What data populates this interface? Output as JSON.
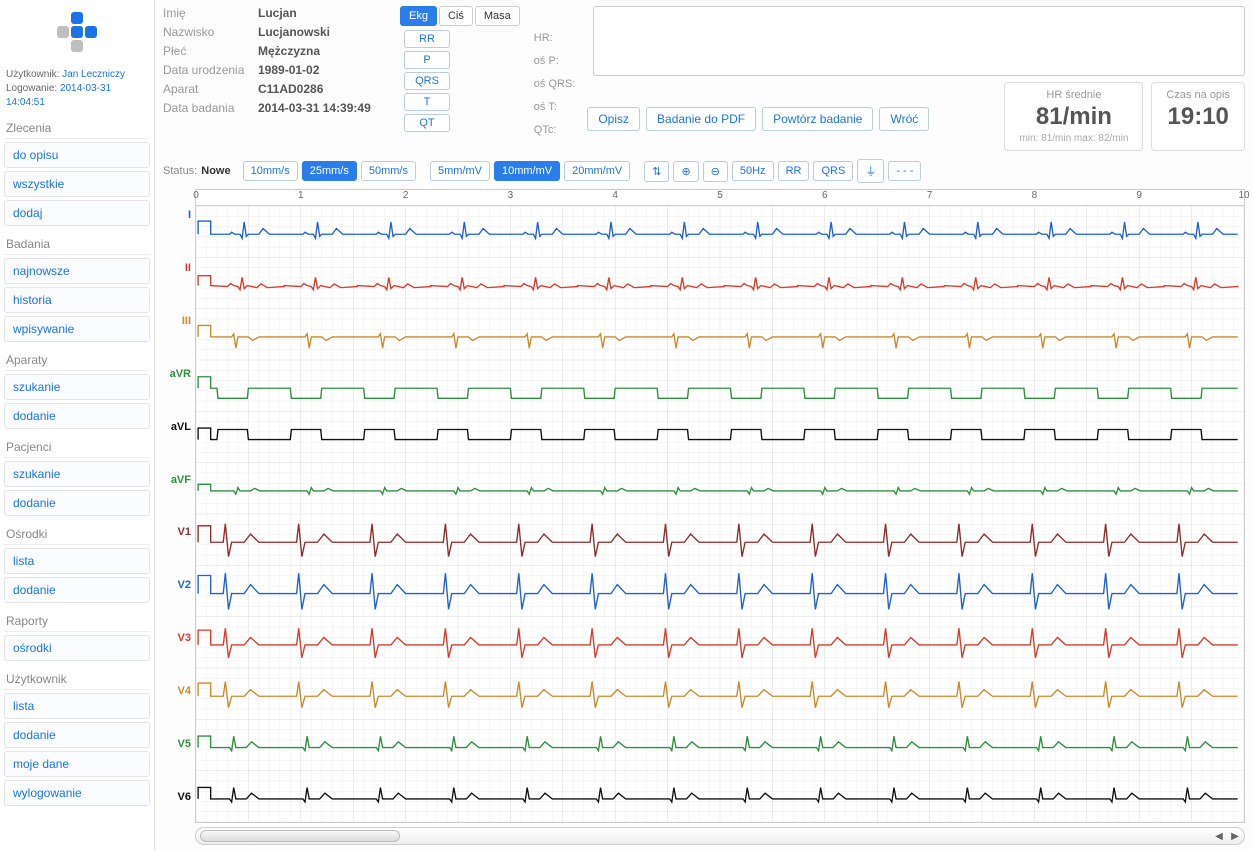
{
  "user": {
    "label_user": "Użytkownik:",
    "name": "Jan Leczniczy",
    "label_login": "Logowanie:",
    "login_time": "2014-03-31 14:04:51"
  },
  "menu": [
    {
      "title": "Zlecenia",
      "items": [
        "do opisu",
        "wszystkie",
        "dodaj"
      ]
    },
    {
      "title": "Badania",
      "items": [
        "najnowsze",
        "historia",
        "wpisywanie"
      ]
    },
    {
      "title": "Aparaty",
      "items": [
        "szukanie",
        "dodanie"
      ]
    },
    {
      "title": "Pacjenci",
      "items": [
        "szukanie",
        "dodanie"
      ]
    },
    {
      "title": "Ośrodki",
      "items": [
        "lista",
        "dodanie"
      ]
    },
    {
      "title": "Raporty",
      "items": [
        "ośrodki"
      ]
    },
    {
      "title": "Użytkownik",
      "items": [
        "lista",
        "dodanie",
        "moje dane",
        "wylogowanie"
      ]
    }
  ],
  "patient": {
    "labels": {
      "imie": "Imię",
      "nazwisko": "Nazwisko",
      "plec": "Płeć",
      "dob": "Data urodzenia",
      "aparat": "Aparat",
      "data_badania": "Data badania"
    },
    "imie": "Lucjan",
    "nazwisko": "Lucjanowski",
    "plec": "Mężczyzna",
    "dob": "1989-01-02",
    "aparat": "C11AD0286",
    "data_badania": "2014-03-31 14:39:49"
  },
  "tabs": {
    "items": [
      "Ekg",
      "Ciś",
      "Masa"
    ],
    "active": 0
  },
  "meas_buttons": [
    "RR",
    "P",
    "QRS",
    "T",
    "QT"
  ],
  "meas_labels": [
    "HR:",
    "oś P:",
    "oś QRS:",
    "oś T:",
    "QTc:"
  ],
  "actions": [
    "Opisz",
    "Badanie do PDF",
    "Powtórz badanie",
    "Wróć"
  ],
  "hr_box": {
    "title": "HR średnie",
    "value": "81/min",
    "sub": "min: 81/min  max: 82/min"
  },
  "time_box": {
    "title": "Czas na opis",
    "value": "19:10"
  },
  "toolbar": {
    "status_label": "Status:",
    "status_value": "Nowe",
    "speed": {
      "options": [
        "10mm/s",
        "25mm/s",
        "50mm/s"
      ],
      "active": 1
    },
    "gain": {
      "options": [
        "5mm/mV",
        "10mm/mV",
        "20mm/mV"
      ],
      "active": 1
    },
    "icons": [
      "swap",
      "zoom-in",
      "zoom-out",
      "50Hz",
      "RR",
      "QRS",
      "pulse",
      "lead-style"
    ]
  },
  "ruler": {
    "start": 0,
    "end": 10,
    "step": 1
  },
  "ecg": {
    "leads": [
      {
        "name": "I",
        "color": "#1f5fd8",
        "amp": 16,
        "baseline_shift": 0,
        "shape": "qrs_up"
      },
      {
        "name": "II",
        "color": "#d83a2b",
        "amp": 12,
        "baseline_shift": 0,
        "shape": "qrs_up_noisy"
      },
      {
        "name": "III",
        "color": "#c98a2b",
        "amp": 14,
        "baseline_shift": 0,
        "shape": "qrs_down"
      },
      {
        "name": "aVR",
        "color": "#2e8f3e",
        "amp": 14,
        "baseline_shift": 0,
        "shape": "square_down"
      },
      {
        "name": "aVL",
        "color": "#111111",
        "amp": 14,
        "baseline_shift": 0,
        "shape": "square_up"
      },
      {
        "name": "aVF",
        "color": "#2e8f3e",
        "amp": 8,
        "baseline_shift": 0,
        "shape": "small_biphasic"
      },
      {
        "name": "V1",
        "color": "#8f2b2b",
        "amp": 20,
        "baseline_shift": 0,
        "shape": "tall_rs"
      },
      {
        "name": "V2",
        "color": "#1f5fd8",
        "amp": 22,
        "baseline_shift": 0,
        "shape": "tall_rs"
      },
      {
        "name": "V3",
        "color": "#d83a2b",
        "amp": 18,
        "baseline_shift": 0,
        "shape": "tall_rs"
      },
      {
        "name": "V4",
        "color": "#c98a2b",
        "amp": 16,
        "baseline_shift": 0,
        "shape": "tall_rs"
      },
      {
        "name": "V5",
        "color": "#2e8f3e",
        "amp": 14,
        "baseline_shift": 0,
        "shape": "qrs_up_t"
      },
      {
        "name": "V6",
        "color": "#111111",
        "amp": 14,
        "baseline_shift": 0,
        "shape": "qrs_up_t"
      }
    ],
    "beats": 14,
    "grid": {
      "minor": "#eeeeee",
      "major": "#dcdcdc"
    },
    "cal_pulse_color_match_lead": true
  }
}
